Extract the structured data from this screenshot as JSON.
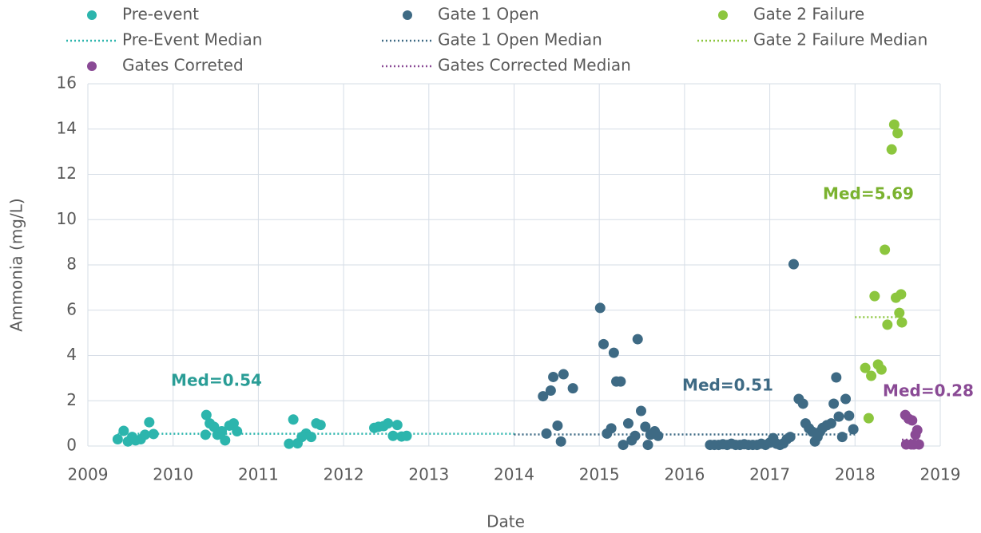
{
  "chart_data": {
    "type": "scatter",
    "xlabel": "Date",
    "ylabel": "Ammonia (mg/L)",
    "xlim": [
      2009,
      2019
    ],
    "xticks": [
      2009,
      2010,
      2011,
      2012,
      2013,
      2014,
      2015,
      2016,
      2017,
      2018,
      2019
    ],
    "ylim": [
      0,
      16
    ],
    "yticks": [
      0,
      2,
      4,
      6,
      8,
      10,
      12,
      14,
      16
    ],
    "grid": true,
    "series": [
      {
        "name": "Pre-event",
        "color": "#2cb5ad",
        "mode": "markers",
        "x": [
          2009.35,
          2009.42,
          2009.47,
          2009.52,
          2009.56,
          2009.62,
          2009.67,
          2009.72,
          2009.77,
          2010.38,
          2010.39,
          2010.43,
          2010.48,
          2010.52,
          2010.57,
          2010.61,
          2010.66,
          2010.71,
          2010.75,
          2011.36,
          2011.41,
          2011.46,
          2011.51,
          2011.56,
          2011.62,
          2011.68,
          2011.73,
          2012.36,
          2012.41,
          2012.47,
          2012.52,
          2012.58,
          2012.63,
          2012.68,
          2012.74
        ],
        "values": [
          0.3,
          0.67,
          0.2,
          0.4,
          0.25,
          0.3,
          0.5,
          1.05,
          0.53,
          0.5,
          1.37,
          1.0,
          0.85,
          0.5,
          0.65,
          0.25,
          0.9,
          1.0,
          0.65,
          0.1,
          1.17,
          0.12,
          0.4,
          0.55,
          0.4,
          1.0,
          0.93,
          0.8,
          0.85,
          0.88,
          1.0,
          0.45,
          0.93,
          0.42,
          0.45
        ]
      },
      {
        "name": "Gate 1 Open",
        "color": "#3e6a84",
        "mode": "markers",
        "x": [
          2014.34,
          2014.38,
          2014.43,
          2014.46,
          2014.51,
          2014.55,
          2014.58,
          2014.69,
          2015.01,
          2015.05,
          2015.09,
          2015.14,
          2015.17,
          2015.2,
          2015.25,
          2015.28,
          2015.34,
          2015.38,
          2015.42,
          2015.45,
          2015.49,
          2015.54,
          2015.57,
          2015.6,
          2015.65,
          2015.69,
          2016.3,
          2016.35,
          2016.4,
          2016.45,
          2016.5,
          2016.55,
          2016.6,
          2016.65,
          2016.7,
          2016.75,
          2016.8,
          2016.85,
          2016.9,
          2016.95,
          2017.0,
          2017.04,
          2017.08,
          2017.12,
          2017.16,
          2017.2,
          2017.24,
          2017.28,
          2017.34,
          2017.39,
          2017.42,
          2017.46,
          2017.5,
          2017.53,
          2017.56,
          2017.59,
          2017.62,
          2017.67,
          2017.72,
          2017.75,
          2017.78,
          2017.81,
          2017.85,
          2017.89,
          2017.93,
          2017.98
        ],
        "values": [
          2.2,
          0.55,
          2.45,
          3.05,
          0.9,
          0.2,
          3.17,
          2.55,
          6.1,
          4.5,
          0.55,
          0.78,
          4.12,
          2.85,
          2.85,
          0.05,
          1.0,
          0.25,
          0.45,
          4.72,
          1.55,
          0.85,
          0.05,
          0.5,
          0.65,
          0.45,
          0.05,
          0.05,
          0.05,
          0.08,
          0.05,
          0.1,
          0.05,
          0.05,
          0.08,
          0.05,
          0.05,
          0.05,
          0.1,
          0.05,
          0.15,
          0.35,
          0.1,
          0.05,
          0.12,
          0.3,
          0.4,
          8.03,
          2.08,
          1.87,
          1.0,
          0.78,
          0.63,
          0.2,
          0.4,
          0.63,
          0.8,
          0.92,
          1.0,
          1.87,
          3.03,
          1.3,
          0.4,
          2.08,
          1.34,
          0.74
        ]
      },
      {
        "name": "Gate 2 Failure",
        "color": "#8cc63e",
        "mode": "markers",
        "x": [
          2018.12,
          2018.16,
          2018.19,
          2018.23,
          2018.27,
          2018.31,
          2018.35,
          2018.38,
          2018.43,
          2018.46,
          2018.48,
          2018.5,
          2018.52,
          2018.54,
          2018.55
        ],
        "values": [
          3.45,
          1.23,
          3.1,
          6.62,
          3.6,
          3.38,
          8.67,
          5.36,
          13.1,
          14.2,
          6.55,
          13.82,
          5.88,
          6.7,
          5.46
        ]
      },
      {
        "name": "Pre-Event Median",
        "color": "#2cb5ad",
        "mode": "lines",
        "x": [
          2009.35,
          2014.0
        ],
        "values": [
          0.54,
          0.54
        ]
      },
      {
        "name": "Gate 1 Open Median",
        "color": "#3e6a84",
        "mode": "lines",
        "x": [
          2014.0,
          2018.0
        ],
        "values": [
          0.51,
          0.51
        ]
      },
      {
        "name": "Gate 2 Failure Median",
        "color": "#8cc63e",
        "mode": "lines",
        "x": [
          2018.0,
          2018.5
        ],
        "values": [
          5.69,
          5.69
        ]
      },
      {
        "name": "Gates Correted",
        "color": "#8a4a95",
        "mode": "markers",
        "x": [
          2018.59,
          2018.6,
          2018.63,
          2018.66,
          2018.67,
          2018.69,
          2018.71,
          2018.73,
          2018.75
        ],
        "values": [
          1.37,
          0.07,
          1.2,
          0.07,
          1.13,
          0.07,
          0.5,
          0.7,
          0.07
        ]
      },
      {
        "name": "Gates Corrected Median",
        "color": "#8a4a95",
        "mode": "lines",
        "x": [
          2018.55,
          2018.75
        ],
        "values": [
          0.28,
          0.28
        ]
      }
    ],
    "annotations": [
      {
        "text": "Med=0.54",
        "color": "#2a9d96"
      },
      {
        "text": "Med=0.51",
        "color": "#3e6a84"
      },
      {
        "text": "Med=5.69",
        "color": "#7ab22f"
      },
      {
        "text": "Med=0.28",
        "color": "#8a4a95"
      }
    ]
  }
}
